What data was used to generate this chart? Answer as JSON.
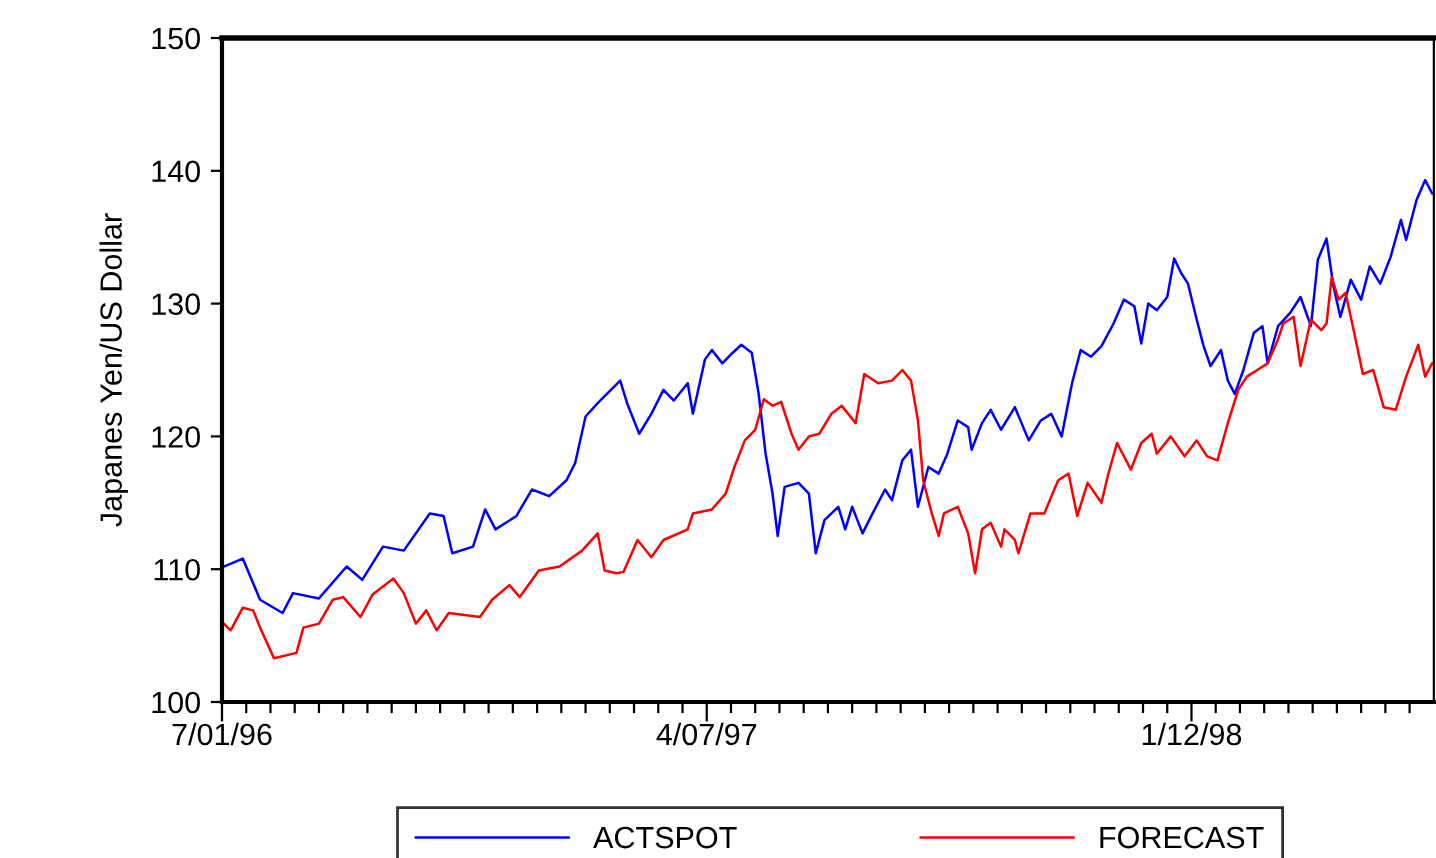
{
  "chart_data": {
    "type": "line",
    "ylabel": "Japanes Yen/US Dollar",
    "xlim": [
      "1996-07-01",
      "1998-06-01"
    ],
    "ylim": [
      100,
      150
    ],
    "yticks": [
      100,
      110,
      120,
      130,
      140,
      150
    ],
    "xticks": [
      {
        "value": "1996-07-01",
        "label": "7/01/96"
      },
      {
        "value": "1996-07-15",
        "label": null
      },
      {
        "value": "1996-07-29",
        "label": null
      },
      {
        "value": "1996-08-12",
        "label": null
      },
      {
        "value": "1996-08-26",
        "label": null
      },
      {
        "value": "1996-09-09",
        "label": null
      },
      {
        "value": "1996-09-23",
        "label": null
      },
      {
        "value": "1996-10-07",
        "label": null
      },
      {
        "value": "1996-10-21",
        "label": null
      },
      {
        "value": "1996-11-04",
        "label": null
      },
      {
        "value": "1996-11-18",
        "label": null
      },
      {
        "value": "1996-12-02",
        "label": null
      },
      {
        "value": "1996-12-16",
        "label": null
      },
      {
        "value": "1996-12-30",
        "label": null
      },
      {
        "value": "1997-01-13",
        "label": null
      },
      {
        "value": "1997-01-27",
        "label": null
      },
      {
        "value": "1997-02-10",
        "label": null
      },
      {
        "value": "1997-02-24",
        "label": null
      },
      {
        "value": "1997-03-10",
        "label": null
      },
      {
        "value": "1997-03-24",
        "label": null
      },
      {
        "value": "1997-04-07",
        "label": "4/07/97"
      },
      {
        "value": "1997-04-21",
        "label": null
      },
      {
        "value": "1997-05-05",
        "label": null
      },
      {
        "value": "1997-05-19",
        "label": null
      },
      {
        "value": "1997-06-02",
        "label": null
      },
      {
        "value": "1997-06-16",
        "label": null
      },
      {
        "value": "1997-06-30",
        "label": null
      },
      {
        "value": "1997-07-14",
        "label": null
      },
      {
        "value": "1997-07-28",
        "label": null
      },
      {
        "value": "1997-08-11",
        "label": null
      },
      {
        "value": "1997-08-25",
        "label": null
      },
      {
        "value": "1997-09-08",
        "label": null
      },
      {
        "value": "1997-09-22",
        "label": null
      },
      {
        "value": "1997-10-06",
        "label": null
      },
      {
        "value": "1997-10-20",
        "label": null
      },
      {
        "value": "1997-11-03",
        "label": null
      },
      {
        "value": "1997-11-17",
        "label": null
      },
      {
        "value": "1997-12-01",
        "label": null
      },
      {
        "value": "1997-12-15",
        "label": null
      },
      {
        "value": "1997-12-29",
        "label": null
      },
      {
        "value": "1998-01-12",
        "label": "1/12/98"
      },
      {
        "value": "1998-01-26",
        "label": null
      },
      {
        "value": "1998-02-09",
        "label": null
      },
      {
        "value": "1998-02-23",
        "label": null
      },
      {
        "value": "1998-03-09",
        "label": null
      },
      {
        "value": "1998-03-23",
        "label": null
      },
      {
        "value": "1998-04-06",
        "label": null
      },
      {
        "value": "1998-04-20",
        "label": null
      },
      {
        "value": "1998-05-04",
        "label": null
      },
      {
        "value": "1998-05-18",
        "label": null
      }
    ],
    "grid": false,
    "legend": "bottom",
    "marker": "none",
    "line_style": "solid",
    "series": [
      {
        "name": "ACTSPOT",
        "color": "#0000ff",
        "x": [
          "1996-07-02",
          "1996-07-13",
          "1996-07-23",
          "1996-08-05",
          "1996-08-11",
          "1996-08-26",
          "1996-09-11",
          "1996-09-20",
          "1996-10-02",
          "1996-10-14",
          "1996-10-29",
          "1996-11-06",
          "1996-11-11",
          "1996-11-23",
          "1996-11-30",
          "1996-12-06",
          "1996-12-18",
          "1996-12-27",
          "1997-01-06",
          "1997-01-16",
          "1997-01-21",
          "1997-01-27",
          "1997-02-03",
          "1997-02-16",
          "1997-02-20",
          "1997-02-27",
          "1997-03-06",
          "1997-03-13",
          "1997-03-19",
          "1997-03-27",
          "1997-03-30",
          "1997-04-06",
          "1997-04-10",
          "1997-04-16",
          "1997-04-22",
          "1997-04-27",
          "1997-05-03",
          "1997-05-07",
          "1997-05-11",
          "1997-05-15",
          "1997-05-18",
          "1997-05-22",
          "1997-05-30",
          "1997-06-05",
          "1997-06-09",
          "1997-06-14",
          "1997-06-22",
          "1997-06-26",
          "1997-06-30",
          "1997-07-06",
          "1997-07-11",
          "1997-07-19",
          "1997-07-23",
          "1997-07-29",
          "1997-08-03",
          "1997-08-07",
          "1997-08-13",
          "1997-08-19",
          "1997-08-24",
          "1997-08-30",
          "1997-09-05",
          "1997-09-07",
          "1997-09-13",
          "1997-09-18",
          "1997-09-24",
          "1997-10-02",
          "1997-10-10",
          "1997-10-17",
          "1997-10-23",
          "1997-10-29",
          "1997-11-04",
          "1997-11-09",
          "1997-11-15",
          "1997-11-21",
          "1997-11-28",
          "1997-12-04",
          "1997-12-10",
          "1997-12-14",
          "1997-12-18",
          "1997-12-23",
          "1997-12-29",
          "1998-01-02",
          "1998-01-06",
          "1998-01-10",
          "1998-01-15",
          "1998-01-19",
          "1998-01-23",
          "1998-01-29",
          "1998-02-02",
          "1998-02-06",
          "1998-02-11",
          "1998-02-17",
          "1998-02-22",
          "1998-02-25",
          "1998-03-03",
          "1998-03-10",
          "1998-03-16",
          "1998-03-22",
          "1998-03-26",
          "1998-03-31",
          "1998-04-04",
          "1998-04-08",
          "1998-04-14",
          "1998-04-20",
          "1998-04-25",
          "1998-05-01",
          "1998-05-07",
          "1998-05-13",
          "1998-05-16",
          "1998-05-22",
          "1998-05-27",
          "1998-05-31"
        ],
        "values": [
          110.2,
          110.8,
          107.7,
          106.7,
          108.2,
          107.8,
          110.2,
          109.2,
          111.7,
          111.4,
          114.2,
          114.0,
          111.2,
          111.7,
          114.5,
          113.0,
          114.0,
          116.0,
          115.5,
          116.7,
          118.0,
          121.5,
          122.5,
          124.2,
          122.5,
          120.2,
          121.7,
          123.5,
          122.7,
          124.0,
          121.7,
          125.8,
          126.5,
          125.5,
          126.3,
          126.9,
          126.3,
          123.2,
          118.7,
          115.7,
          112.5,
          116.2,
          116.5,
          115.7,
          111.2,
          113.7,
          114.7,
          113.0,
          114.7,
          112.7,
          114.0,
          116.0,
          115.2,
          118.2,
          119.0,
          114.7,
          117.7,
          117.2,
          118.7,
          121.2,
          120.7,
          119.0,
          121.0,
          122.0,
          120.5,
          122.2,
          119.7,
          121.2,
          121.7,
          120.0,
          124.0,
          126.5,
          126.0,
          126.8,
          128.5,
          130.3,
          129.8,
          127.0,
          130.0,
          129.5,
          130.5,
          133.4,
          132.3,
          131.5,
          128.8,
          126.8,
          125.3,
          126.5,
          124.2,
          123.2,
          125.0,
          127.8,
          128.3,
          125.5,
          128.3,
          129.3,
          130.5,
          128.3,
          133.3,
          134.9,
          131.3,
          129.0,
          131.8,
          130.3,
          132.8,
          131.5,
          133.5,
          136.3,
          134.8,
          137.8,
          139.3,
          138.3
        ]
      },
      {
        "name": "FORECAST",
        "color": "#ff0000",
        "x": [
          "1996-07-02",
          "1996-07-06",
          "1996-07-13",
          "1996-07-19",
          "1996-07-23",
          "1996-07-31",
          "1996-08-13",
          "1996-08-17",
          "1996-08-26",
          "1996-09-03",
          "1996-09-09",
          "1996-09-19",
          "1996-09-26",
          "1996-10-08",
          "1996-10-14",
          "1996-10-21",
          "1996-10-27",
          "1996-11-02",
          "1996-11-09",
          "1996-11-27",
          "1996-12-04",
          "1996-12-14",
          "1996-12-20",
          "1996-12-31",
          "1997-01-12",
          "1997-01-25",
          "1997-02-03",
          "1997-02-07",
          "1997-02-14",
          "1997-02-18",
          "1997-02-26",
          "1997-03-06",
          "1997-03-13",
          "1997-03-27",
          "1997-03-30",
          "1997-04-10",
          "1997-04-18",
          "1997-04-23",
          "1997-04-29",
          "1997-05-05",
          "1997-05-10",
          "1997-05-15",
          "1997-05-20",
          "1997-05-26",
          "1997-05-30",
          "1997-06-05",
          "1997-06-11",
          "1997-06-18",
          "1997-06-24",
          "1997-07-02",
          "1997-07-07",
          "1997-07-15",
          "1997-07-23",
          "1997-07-29",
          "1997-08-03",
          "1997-08-07",
          "1997-08-10",
          "1997-08-15",
          "1997-08-19",
          "1997-08-22",
          "1997-08-30",
          "1997-09-05",
          "1997-09-09",
          "1997-09-13",
          "1997-09-18",
          "1997-09-24",
          "1997-09-26",
          "1997-10-02",
          "1997-10-04",
          "1997-10-11",
          "1997-10-19",
          "1997-10-27",
          "1997-11-02",
          "1997-11-07",
          "1997-11-13",
          "1997-11-21",
          "1997-11-25",
          "1997-11-30",
          "1997-12-08",
          "1997-12-14",
          "1997-12-20",
          "1997-12-23",
          "1997-12-31",
          "1998-01-08",
          "1998-01-15",
          "1998-01-21",
          "1998-01-27",
          "1998-02-02",
          "1998-02-08",
          "1998-02-13",
          "1998-02-19",
          "1998-02-25",
          "1998-03-03",
          "1998-03-06",
          "1998-03-12",
          "1998-03-16",
          "1998-03-22",
          "1998-03-28",
          "1998-03-31",
          "1998-04-03",
          "1998-04-07",
          "1998-04-11",
          "1998-04-16",
          "1998-04-21",
          "1998-04-27",
          "1998-05-03",
          "1998-05-10",
          "1998-05-16",
          "1998-05-23",
          "1998-05-27",
          "1998-05-31"
        ],
        "values": [
          105.9,
          105.4,
          107.1,
          106.9,
          105.6,
          103.3,
          103.7,
          105.6,
          105.9,
          107.7,
          107.9,
          106.4,
          108.1,
          109.3,
          108.2,
          105.9,
          106.9,
          105.4,
          106.7,
          106.4,
          107.7,
          108.8,
          107.9,
          109.9,
          110.2,
          111.4,
          112.7,
          109.9,
          109.7,
          109.8,
          112.2,
          110.9,
          112.2,
          113.0,
          114.2,
          114.5,
          115.7,
          117.7,
          119.7,
          120.5,
          122.8,
          122.3,
          122.6,
          120.2,
          119.0,
          120.0,
          120.2,
          121.7,
          122.3,
          121.0,
          124.7,
          124.0,
          124.2,
          125.0,
          124.2,
          121.2,
          116.7,
          114.2,
          112.5,
          114.2,
          114.7,
          112.7,
          109.7,
          113.0,
          113.5,
          111.7,
          113.0,
          112.2,
          111.2,
          114.2,
          114.2,
          116.7,
          117.2,
          114.0,
          116.5,
          115.0,
          117.2,
          119.5,
          117.5,
          119.5,
          120.2,
          118.7,
          120.0,
          118.5,
          119.7,
          118.5,
          118.2,
          121.0,
          123.5,
          124.5,
          125.0,
          125.5,
          127.3,
          128.5,
          129.0,
          125.3,
          128.8,
          128.0,
          128.5,
          132.0,
          130.3,
          130.8,
          127.8,
          124.7,
          125.0,
          122.2,
          122.0,
          124.5,
          126.9,
          124.5,
          125.5
        ]
      }
    ]
  }
}
